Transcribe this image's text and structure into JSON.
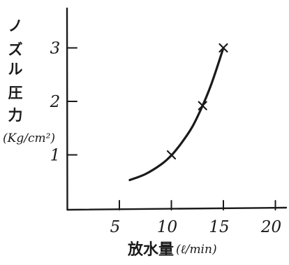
{
  "chart_data": {
    "type": "line",
    "title": "",
    "xlabel_main": "放水量",
    "xlabel_unit": "(ℓ/min)",
    "ylabel_chars": [
      "ノ",
      "ズ",
      "ル",
      "圧",
      "力"
    ],
    "ylabel_unit": "(Kg/cm²)",
    "xlim": [
      0,
      20
    ],
    "ylim": [
      0,
      3.6
    ],
    "x_ticks": [
      5,
      10,
      15,
      20
    ],
    "x_tick_labels": [
      "5",
      "10",
      "15",
      "20"
    ],
    "y_ticks": [
      1,
      2,
      3
    ],
    "y_tick_labels": [
      "1",
      "2",
      "3"
    ],
    "grid": false,
    "series": [
      {
        "curve": [
          {
            "x": 6.0,
            "y": 0.53
          },
          {
            "x": 7.5,
            "y": 0.64
          },
          {
            "x": 9.0,
            "y": 0.82
          },
          {
            "x": 10.0,
            "y": 0.99
          },
          {
            "x": 11.0,
            "y": 1.23
          },
          {
            "x": 12.0,
            "y": 1.52
          },
          {
            "x": 13.0,
            "y": 1.92
          },
          {
            "x": 13.8,
            "y": 2.3
          },
          {
            "x": 14.5,
            "y": 2.7
          },
          {
            "x": 15.0,
            "y": 3.0
          }
        ],
        "measured_points": [
          {
            "x": 10.0,
            "y": 1.0
          },
          {
            "x": 13.0,
            "y": 1.92
          },
          {
            "x": 15.0,
            "y": 3.0
          }
        ]
      }
    ]
  }
}
